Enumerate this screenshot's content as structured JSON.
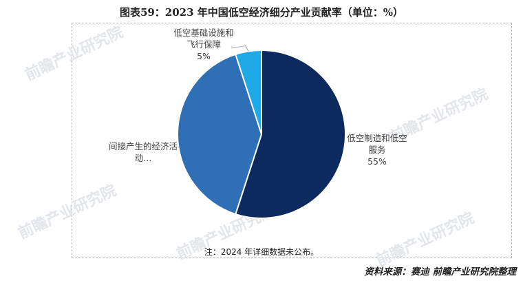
{
  "title": "图表59：2023 年中国低空经济细分产业贡献率（单位：%）",
  "note": "注：2024 年详细数据未公布。",
  "source": "资料来源：赛迪 前瞻产业研究院整理",
  "watermark": "前瞻产业研究院",
  "chart_data": {
    "type": "pie",
    "title": "图表59：2023 年中国低空经济细分产业贡献率（单位：%）",
    "slices": [
      {
        "label": "低空制造和低空服务",
        "value": 55,
        "label_lines": [
          "低空制造和低空",
          "服务"
        ],
        "value_text": "55%",
        "color": "#0d2a5e"
      },
      {
        "label": "间接产生的经济活动...",
        "value": 40,
        "label_lines": [
          "间接产生的经济活",
          "动..."
        ],
        "value_text": "",
        "color": "#2e6fb6"
      },
      {
        "label": "低空基础设施和飞行保障",
        "value": 5,
        "label_lines": [
          "低空基础设施和",
          "飞行保障"
        ],
        "value_text": "5%",
        "color": "#1fa9e6"
      }
    ]
  }
}
